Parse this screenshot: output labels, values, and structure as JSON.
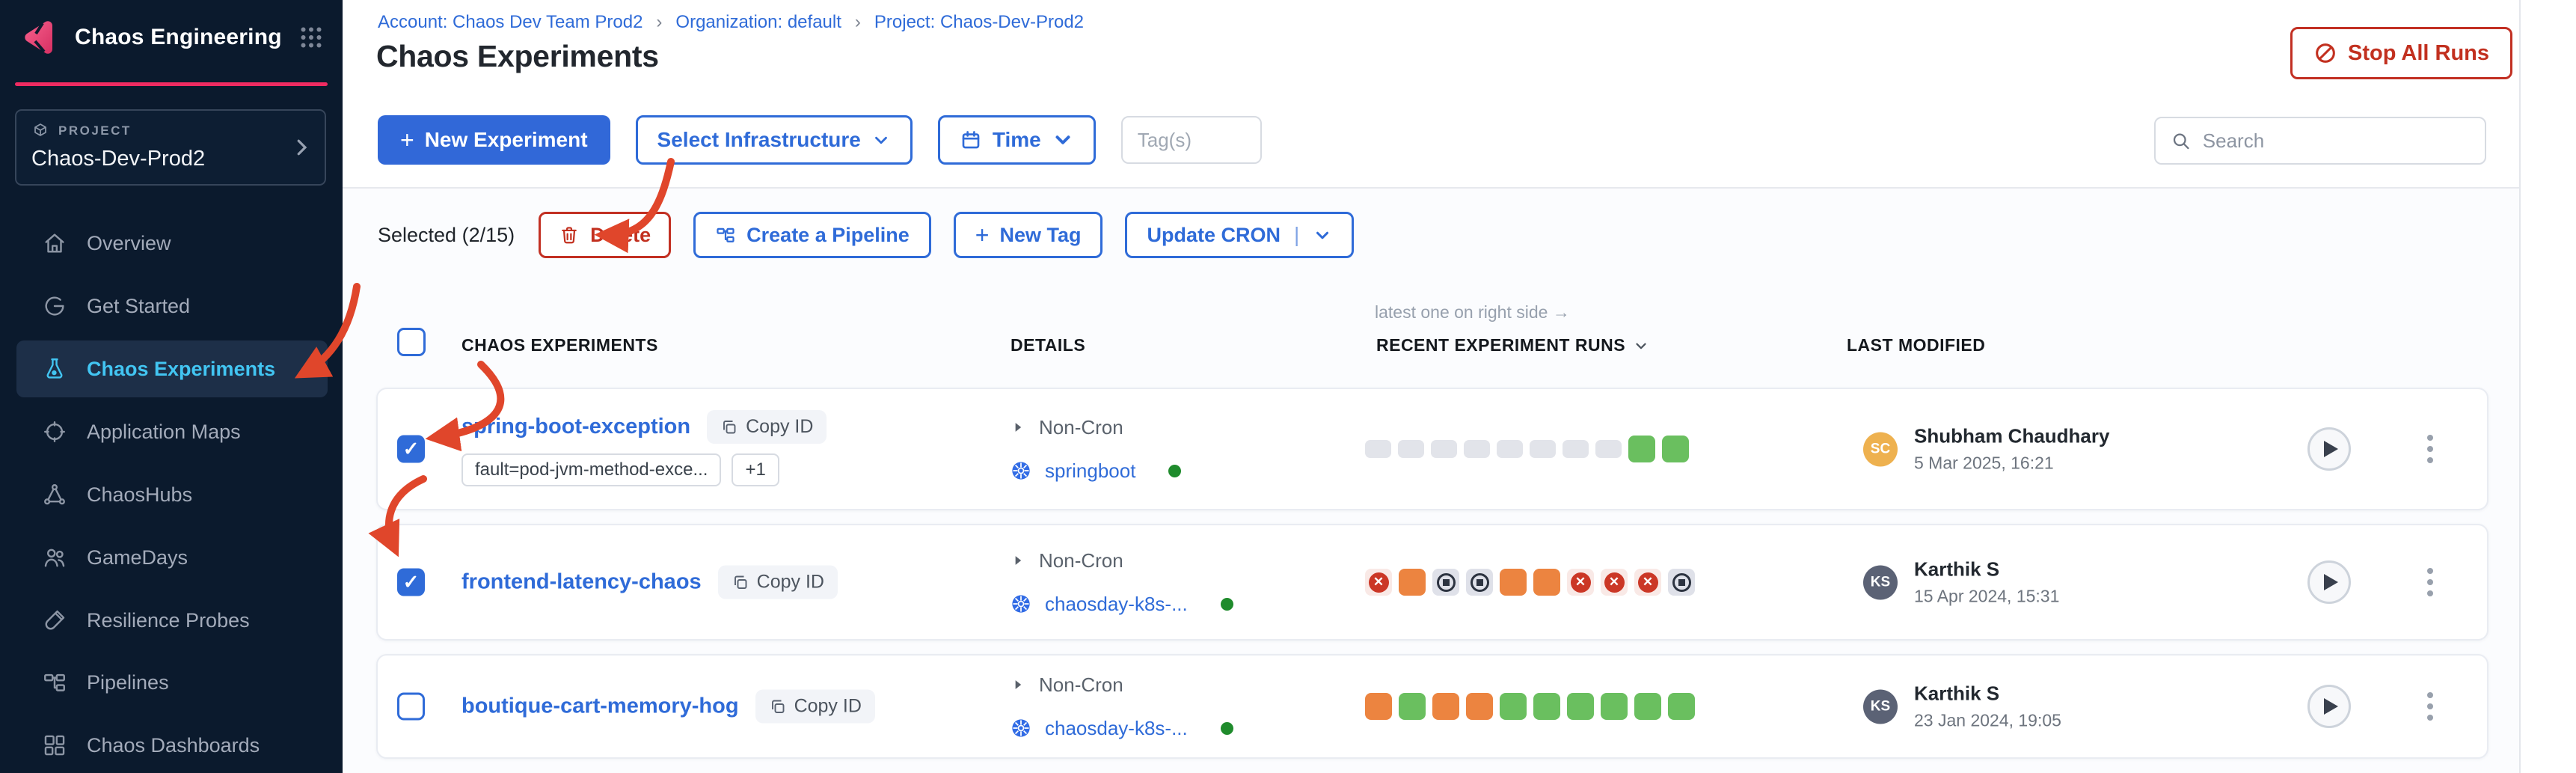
{
  "icons": {
    "plus": "+",
    "check": "✓",
    "x": "✕",
    "breadcrumb_sep": "›",
    "pipe": "|"
  },
  "sidebar": {
    "brand": "Chaos Engineering",
    "project_label": "PROJECT",
    "project_name": "Chaos-Dev-Prod2",
    "items": [
      {
        "label": "Overview"
      },
      {
        "label": "Get Started"
      },
      {
        "label": "Chaos Experiments"
      },
      {
        "label": "Application Maps"
      },
      {
        "label": "ChaosHubs"
      },
      {
        "label": "GameDays"
      },
      {
        "label": "Resilience Probes"
      },
      {
        "label": "Pipelines"
      },
      {
        "label": "Chaos Dashboards"
      }
    ]
  },
  "header": {
    "breadcrumb": {
      "account": "Account: Chaos Dev Team Prod2",
      "org": "Organization: default",
      "project": "Project: Chaos-Dev-Prod2"
    },
    "title": "Chaos Experiments",
    "stop_all_runs": "Stop All Runs"
  },
  "toolbar": {
    "new_experiment": "New Experiment",
    "select_infrastructure": "Select Infrastructure",
    "time": "Time",
    "tags_placeholder": "Tag(s)",
    "search_placeholder": "Search"
  },
  "bulk_actions": {
    "selected": "Selected (2/15)",
    "delete": "Delete",
    "create_pipeline": "Create a Pipeline",
    "new_tag": "New Tag",
    "update_cron": "Update CRON"
  },
  "table": {
    "note": "latest one on right side →",
    "columns": {
      "experiments": "CHAOS EXPERIMENTS",
      "details": "DETAILS",
      "runs": "RECENT EXPERIMENT RUNS",
      "last_modified": "LAST MODIFIED"
    },
    "rows": [
      {
        "name": "spring-boot-exception",
        "copy_id": "Copy ID",
        "checked": true,
        "tags": [
          "fault=pod-jvm-method-exce...",
          "+1"
        ],
        "schedule": "Non-Cron",
        "infra": "springboot",
        "runs": [
          "gray",
          "gray",
          "gray",
          "gray",
          "gray",
          "gray",
          "gray",
          "gray",
          "green",
          "green"
        ],
        "initials": "SC",
        "modified_by": "Shubham Chaudhary",
        "modified_at": "5 Mar 2025, 16:21"
      },
      {
        "name": "frontend-latency-chaos",
        "copy_id": "Copy ID",
        "checked": true,
        "tags": [],
        "schedule": "Non-Cron",
        "infra": "chaosday-k8s-...",
        "runs": [
          "failed",
          "orange",
          "stopped",
          "stopped",
          "orange",
          "orange",
          "failed",
          "failed",
          "failed",
          "stopped"
        ],
        "initials": "KS",
        "modified_by": "Karthik S",
        "modified_at": "15 Apr 2024, 15:31"
      },
      {
        "name": "boutique-cart-memory-hog",
        "copy_id": "Copy ID",
        "checked": false,
        "tags": [],
        "schedule": "Non-Cron",
        "infra": "chaosday-k8s-...",
        "runs": [
          "orange",
          "green",
          "orange",
          "orange",
          "green",
          "green",
          "green",
          "green",
          "green",
          "green"
        ],
        "initials": "KS",
        "modified_by": "Karthik S",
        "modified_at": "23 Jan 2024, 19:05"
      }
    ]
  },
  "status_colors": {
    "passed": "#6abf5f",
    "running": "#ec8440",
    "failed": "#cb3726",
    "queued": "#e2e4ea",
    "stopped": "#dfe1e9",
    "accent_pink": "#ef2b61",
    "primary_blue": "#2f6bd8",
    "danger_red": "#c2301f"
  }
}
